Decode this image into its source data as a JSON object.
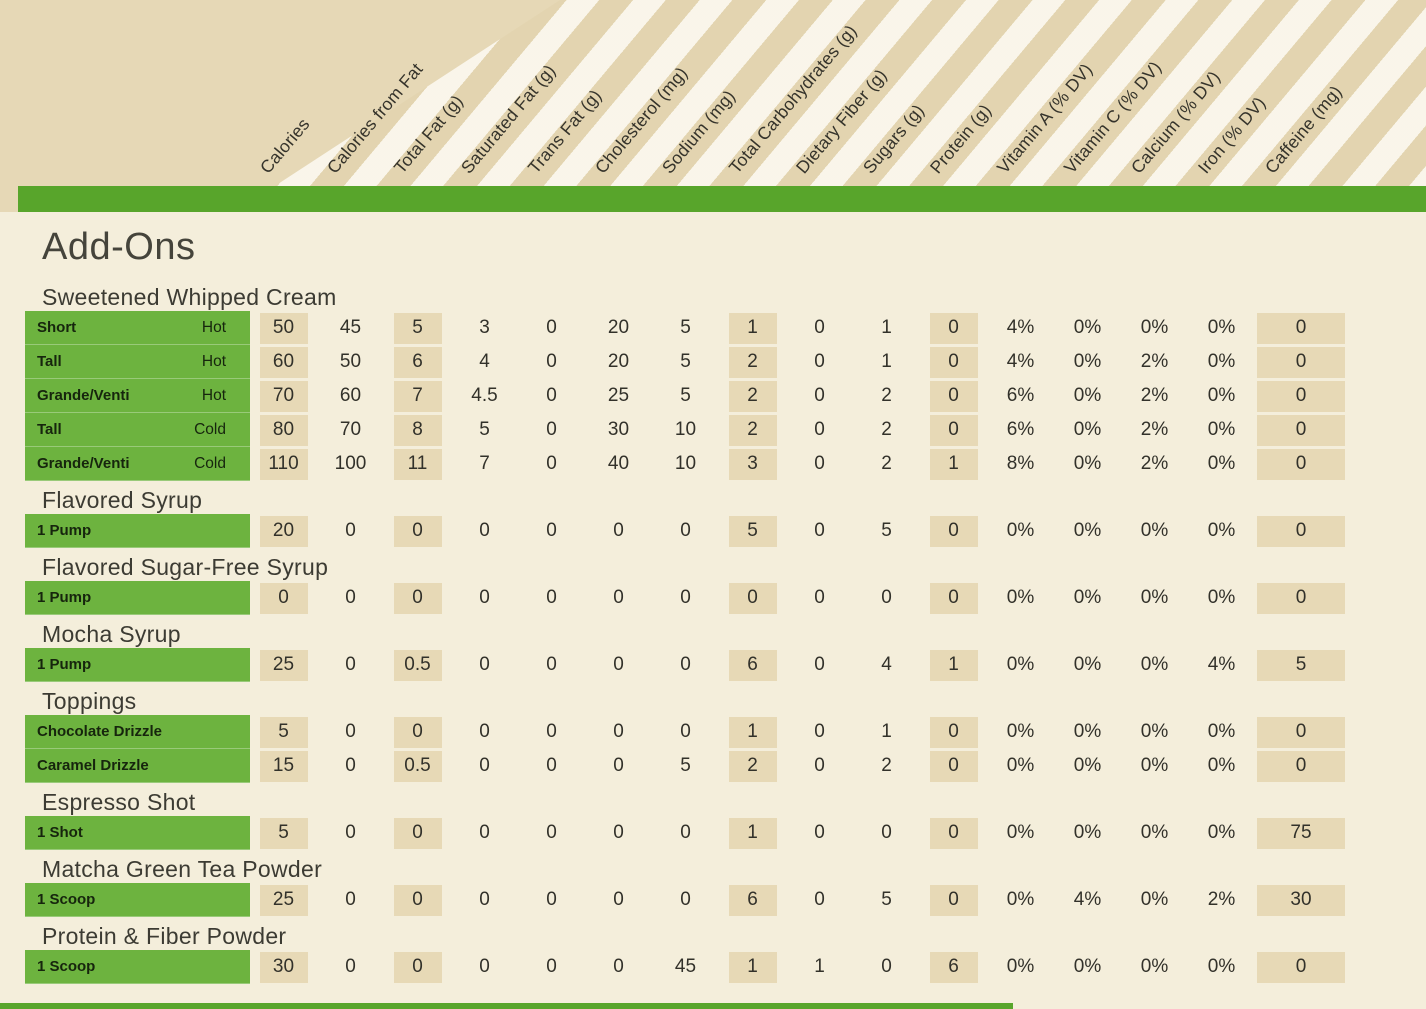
{
  "page": {
    "title": "Add-Ons"
  },
  "colors": {
    "accent_green": "#58a52b",
    "label_green": "#6db33f",
    "shade_tan": "#e7d9b6",
    "page_cream": "#f4eedb"
  },
  "columns": [
    {
      "label": "Calories",
      "shaded": true
    },
    {
      "label": "Calories from Fat",
      "shaded": false
    },
    {
      "label": "Total Fat (g)",
      "shaded": true
    },
    {
      "label": "Saturated Fat (g)",
      "shaded": false
    },
    {
      "label": "Trans Fat (g)",
      "shaded": false
    },
    {
      "label": "Cholesterol (mg)",
      "shaded": false
    },
    {
      "label": "Sodium (mg)",
      "shaded": false
    },
    {
      "label": "Total Carbohydrates (g)",
      "shaded": true
    },
    {
      "label": "Dietary Fiber (g)",
      "shaded": false
    },
    {
      "label": "Sugars (g)",
      "shaded": false
    },
    {
      "label": "Protein (g)",
      "shaded": true
    },
    {
      "label": "Vitamin A (% DV)",
      "shaded": false
    },
    {
      "label": "Vitamin C (% DV)",
      "shaded": false
    },
    {
      "label": "Calcium (% DV)",
      "shaded": false
    },
    {
      "label": "Iron (% DV)",
      "shaded": false
    },
    {
      "label": "Caffeine (mg)",
      "shaded": true
    }
  ],
  "sections": [
    {
      "title": "Sweetened Whipped Cream",
      "rows": [
        {
          "size": "Short",
          "temp": "Hot",
          "values": [
            "50",
            "45",
            "5",
            "3",
            "0",
            "20",
            "5",
            "1",
            "0",
            "1",
            "0",
            "4%",
            "0%",
            "0%",
            "0%",
            "0"
          ]
        },
        {
          "size": "Tall",
          "temp": "Hot",
          "values": [
            "60",
            "50",
            "6",
            "4",
            "0",
            "20",
            "5",
            "2",
            "0",
            "1",
            "0",
            "4%",
            "0%",
            "2%",
            "0%",
            "0"
          ]
        },
        {
          "size": "Grande/Venti",
          "temp": "Hot",
          "values": [
            "70",
            "60",
            "7",
            "4.5",
            "0",
            "25",
            "5",
            "2",
            "0",
            "2",
            "0",
            "6%",
            "0%",
            "2%",
            "0%",
            "0"
          ]
        },
        {
          "size": "Tall",
          "temp": "Cold",
          "values": [
            "80",
            "70",
            "8",
            "5",
            "0",
            "30",
            "10",
            "2",
            "0",
            "2",
            "0",
            "6%",
            "0%",
            "2%",
            "0%",
            "0"
          ]
        },
        {
          "size": "Grande/Venti",
          "temp": "Cold",
          "values": [
            "110",
            "100",
            "11",
            "7",
            "0",
            "40",
            "10",
            "3",
            "0",
            "2",
            "1",
            "8%",
            "0%",
            "2%",
            "0%",
            "0"
          ]
        }
      ]
    },
    {
      "title": "Flavored Syrup",
      "rows": [
        {
          "size": "1 Pump",
          "temp": "",
          "values": [
            "20",
            "0",
            "0",
            "0",
            "0",
            "0",
            "0",
            "5",
            "0",
            "5",
            "0",
            "0%",
            "0%",
            "0%",
            "0%",
            "0"
          ]
        }
      ]
    },
    {
      "title": "Flavored Sugar-Free Syrup",
      "rows": [
        {
          "size": "1 Pump",
          "temp": "",
          "values": [
            "0",
            "0",
            "0",
            "0",
            "0",
            "0",
            "0",
            "0",
            "0",
            "0",
            "0",
            "0%",
            "0%",
            "0%",
            "0%",
            "0"
          ]
        }
      ]
    },
    {
      "title": "Mocha Syrup",
      "rows": [
        {
          "size": "1 Pump",
          "temp": "",
          "values": [
            "25",
            "0",
            "0.5",
            "0",
            "0",
            "0",
            "0",
            "6",
            "0",
            "4",
            "1",
            "0%",
            "0%",
            "0%",
            "4%",
            "5"
          ]
        }
      ]
    },
    {
      "title": "Toppings",
      "rows": [
        {
          "size": "Chocolate Drizzle",
          "temp": "",
          "values": [
            "5",
            "0",
            "0",
            "0",
            "0",
            "0",
            "0",
            "1",
            "0",
            "1",
            "0",
            "0%",
            "0%",
            "0%",
            "0%",
            "0"
          ]
        },
        {
          "size": "Caramel Drizzle",
          "temp": "",
          "values": [
            "15",
            "0",
            "0.5",
            "0",
            "0",
            "0",
            "5",
            "2",
            "0",
            "2",
            "0",
            "0%",
            "0%",
            "0%",
            "0%",
            "0"
          ]
        }
      ]
    },
    {
      "title": "Espresso Shot",
      "rows": [
        {
          "size": "1 Shot",
          "temp": "",
          "values": [
            "5",
            "0",
            "0",
            "0",
            "0",
            "0",
            "0",
            "1",
            "0",
            "0",
            "0",
            "0%",
            "0%",
            "0%",
            "0%",
            "75"
          ]
        }
      ]
    },
    {
      "title": "Matcha Green Tea Powder",
      "rows": [
        {
          "size": "1 Scoop",
          "temp": "",
          "values": [
            "25",
            "0",
            "0",
            "0",
            "0",
            "0",
            "0",
            "6",
            "0",
            "5",
            "0",
            "0%",
            "4%",
            "0%",
            "2%",
            "30"
          ]
        }
      ]
    },
    {
      "title": "Protein & Fiber Powder",
      "rows": [
        {
          "size": "1 Scoop",
          "temp": "",
          "values": [
            "30",
            "0",
            "0",
            "0",
            "0",
            "0",
            "45",
            "1",
            "1",
            "0",
            "6",
            "0%",
            "0%",
            "0%",
            "0%",
            "0"
          ]
        }
      ]
    }
  ]
}
